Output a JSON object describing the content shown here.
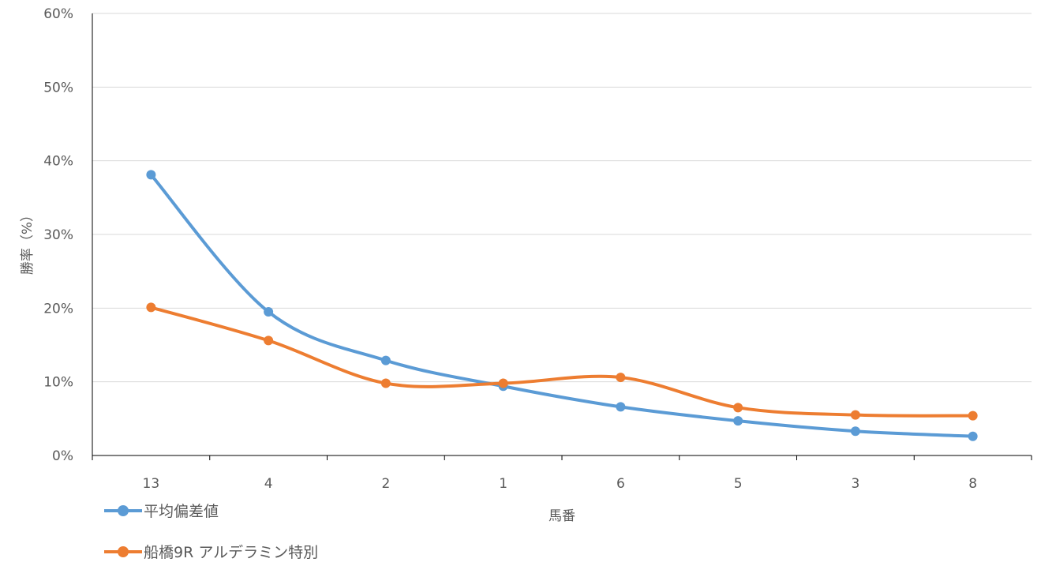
{
  "chart_data": {
    "type": "line",
    "categories": [
      "13",
      "4",
      "2",
      "1",
      "6",
      "5",
      "3",
      "8"
    ],
    "series": [
      {
        "name": "平均偏差値",
        "color": "#5b9bd5",
        "values": [
          38.1,
          19.5,
          12.9,
          9.4,
          6.6,
          4.7,
          3.3,
          2.6
        ]
      },
      {
        "name": "船橋9R アルデラミン特別",
        "color": "#ed7d31",
        "values": [
          20.1,
          15.6,
          9.8,
          9.8,
          10.6,
          6.5,
          5.5,
          5.4
        ]
      }
    ],
    "xlabel": "馬番",
    "ylabel": "勝率（%）",
    "ylim": [
      0,
      60
    ],
    "yticks": [
      "0%",
      "10%",
      "20%",
      "30%",
      "40%",
      "50%",
      "60%"
    ],
    "smooth": true,
    "grid": true,
    "legend": "bottom-left"
  }
}
